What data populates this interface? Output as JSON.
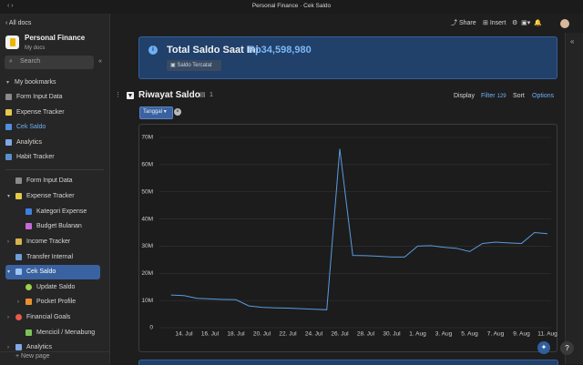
{
  "window_title": "Personal Finance · Cek Saldo",
  "sidebar": {
    "back": "All docs",
    "doc_title": "Personal Finance",
    "doc_subtitle": "My docs",
    "search_placeholder": "Search",
    "bookmarks_heading": "My bookmarks",
    "bookmarks": [
      "Form Input Data",
      "Expense Tracker",
      "Cek Saldo",
      "Analytics",
      "Habit Tracker"
    ],
    "pages": [
      "Form Input Data",
      "Expense Tracker",
      "Kategori Expense",
      "Budget Bulanan",
      "Income Tracker",
      "Transfer Internal",
      "Cek Saldo",
      "Update Saldo",
      "Pocket Profile",
      "Financial Goals",
      "Mencicil / Menabung",
      "Analytics"
    ],
    "new_page": "New page"
  },
  "toolbar": {
    "share": "Share",
    "insert": "Insert"
  },
  "banner": {
    "title": "Total Saldo Saat Ini",
    "amount": "Rp34,598,980",
    "chip": "Saldo Tercatat"
  },
  "section": {
    "title": "Riwayat Saldo",
    "count": 1,
    "display": "Display",
    "filter": "Filter",
    "filter_count": 129,
    "sort": "Sort",
    "options": "Options",
    "chip": "Tanggal"
  },
  "chart_data": {
    "type": "line",
    "color": "#5a9be0",
    "grid": true,
    "x": [
      "13. Jul",
      "14. Jul",
      "15. Jul",
      "16. Jul",
      "17. Jul",
      "18. Jul",
      "19. Jul",
      "20. Jul",
      "21. Jul",
      "22. Jul",
      "23. Jul",
      "24. Jul",
      "25. Jul",
      "26. Jul",
      "27. Jul",
      "28. Jul",
      "29. Jul",
      "30. Jul",
      "31. Jul",
      "1. Aug",
      "2. Aug",
      "3. Aug",
      "4. Aug",
      "5. Aug",
      "6. Aug",
      "7. Aug",
      "8. Aug",
      "9. Aug",
      "10. Aug",
      "11. Aug"
    ],
    "values": [
      12000000,
      11800000,
      10800000,
      10600000,
      10400000,
      10300000,
      8000000,
      7500000,
      7300000,
      7200000,
      7000000,
      6800000,
      6600000,
      65800000,
      26600000,
      26500000,
      26300000,
      26000000,
      26000000,
      30000000,
      30200000,
      29600000,
      29200000,
      28000000,
      31000000,
      31500000,
      31200000,
      31000000,
      35000000,
      34600000
    ],
    "ylim": [
      0,
      70000000
    ],
    "yticks": [
      0,
      {
        "value": 10000000,
        "label": "10M"
      },
      {
        "value": 20000000,
        "label": "20M"
      },
      {
        "value": 30000000,
        "label": "30M"
      },
      {
        "value": 40000000,
        "label": "40M"
      },
      {
        "value": 50000000,
        "label": "50M"
      },
      {
        "value": 60000000,
        "label": "60M"
      },
      {
        "value": 70000000,
        "label": "70M"
      }
    ],
    "xticks": [
      "14. Jul",
      "16. Jul",
      "18. Jul",
      "20. Jul",
      "22. Jul",
      "24. Jul",
      "26. Jul",
      "28. Jul",
      "30. Jul",
      "1. Aug",
      "3. Aug",
      "5. Aug",
      "7. Aug",
      "9. Aug",
      "11. Aug"
    ]
  }
}
